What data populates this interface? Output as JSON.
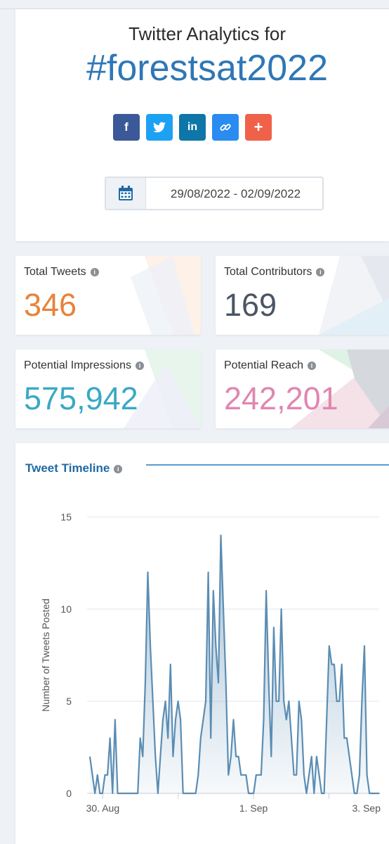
{
  "header": {
    "subtitle": "Twitter Analytics for",
    "hashtag": "#forestsat2022",
    "share_buttons": [
      {
        "name": "facebook-share-icon",
        "glyph": "f",
        "color": "#3b5998"
      },
      {
        "name": "twitter-share-icon",
        "glyph": "t",
        "color": "#1da1f2"
      },
      {
        "name": "linkedin-share-icon",
        "glyph": "in",
        "color": "#0e76a8"
      },
      {
        "name": "link-share-icon",
        "glyph": "⛓",
        "color": "#2a8cf0"
      },
      {
        "name": "plus-share-icon",
        "glyph": "+",
        "color": "#f0614a"
      }
    ],
    "date_range": "29/08/2022 - 02/09/2022"
  },
  "stats": {
    "total_tweets": {
      "label": "Total Tweets",
      "value": "346",
      "color": "#e8833a"
    },
    "total_contributors": {
      "label": "Total Contributors",
      "value": "169",
      "color": "#4b5563"
    },
    "potential_impressions": {
      "label": "Potential Impressions",
      "value": "575,942",
      "color": "#3aa9c4"
    },
    "potential_reach": {
      "label": "Potential Reach",
      "value": "242,201",
      "color": "#e086b0"
    }
  },
  "timeline": {
    "title": "Tweet Timeline"
  },
  "chart_data": {
    "type": "area",
    "title": "Tweet Timeline",
    "xlabel": "",
    "ylabel": "Number of Tweets Posted",
    "ylim": [
      0,
      15
    ],
    "y_ticks": [
      "0",
      "5",
      "10",
      "15"
    ],
    "x_ticks": [
      "30. Aug",
      "1. Sep",
      "3. Sep"
    ],
    "xlim_hours": [
      -5,
      88
    ],
    "x_unit": "hours since 30 Aug 2022 00:00",
    "series": [
      {
        "color": "#5b8db3",
        "values": [
          2,
          1,
          0,
          1,
          0,
          0,
          1,
          1,
          3,
          0,
          4,
          0,
          0,
          0,
          0,
          0,
          0,
          0,
          0,
          0,
          3,
          2,
          6,
          12,
          8,
          5,
          2,
          0,
          2,
          4,
          5,
          3,
          7,
          2,
          4,
          5,
          4,
          0,
          0,
          0,
          0,
          0,
          0,
          1,
          3,
          4,
          5,
          12,
          3,
          11,
          8,
          6,
          14,
          10,
          6,
          1,
          2,
          4,
          2,
          2,
          1,
          1,
          1,
          0,
          0,
          0,
          1,
          1,
          1,
          4,
          11,
          6,
          2,
          9,
          5,
          5,
          10,
          5,
          4,
          5,
          3,
          1,
          1,
          5,
          4,
          1,
          0,
          1,
          2,
          0,
          2,
          1,
          0,
          0,
          4,
          8,
          7,
          7,
          5,
          5,
          7,
          3,
          3,
          2,
          1,
          0,
          0,
          1,
          5,
          8,
          1,
          0,
          0,
          0,
          0,
          0
        ]
      }
    ]
  }
}
